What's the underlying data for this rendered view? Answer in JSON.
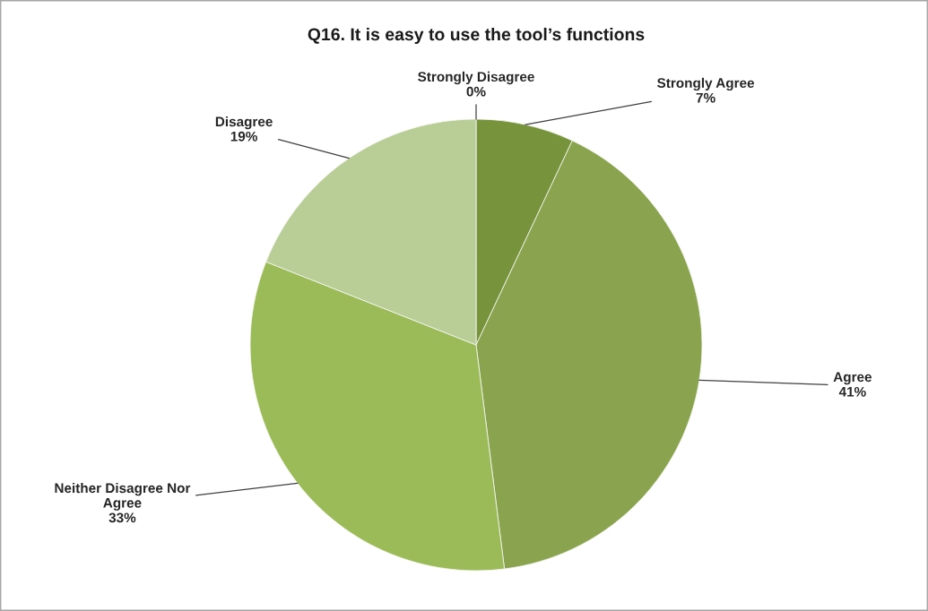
{
  "chart_data": {
    "type": "pie",
    "title": "Q16. It is easy to use the tool’s functions",
    "categories": [
      "Strongly Disagree",
      "Strongly Agree",
      "Agree",
      "Neither Disagree Nor Agree",
      "Disagree"
    ],
    "values": [
      0,
      7,
      41,
      33,
      19
    ],
    "value_labels": [
      "0%",
      "7%",
      "41%",
      "33%",
      "19%"
    ],
    "colors": [
      "#4f6228",
      "#77933c",
      "#8aa34f",
      "#9bbb59",
      "#b9cd96"
    ]
  }
}
